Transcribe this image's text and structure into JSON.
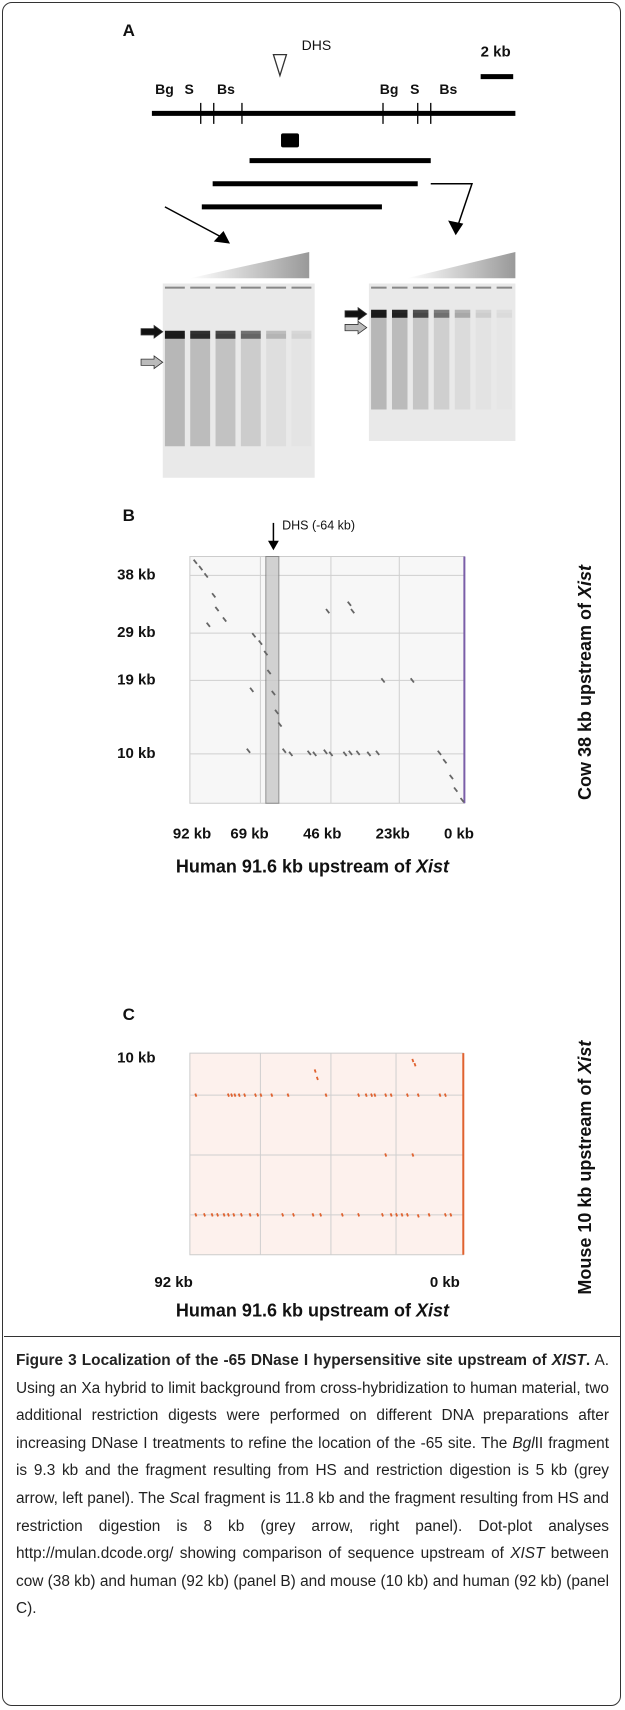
{
  "panel_a": {
    "label": "A",
    "dhs": "DHS",
    "scale": "2 kb",
    "sites": [
      "Bg",
      "S",
      "Bs",
      "Bg",
      "S",
      "Bs"
    ]
  },
  "panel_b": {
    "label": "B",
    "dhs": "DHS (-64 kb)",
    "y_labels": [
      "38 kb",
      "29 kb",
      "19 kb",
      "10 kb"
    ],
    "x_labels": [
      "92 kb",
      "69 kb",
      "46 kb",
      "23kb",
      "0 kb"
    ],
    "x_title": [
      "Human 91.6 kb upstream of ",
      "Xist"
    ],
    "y_title": [
      "Cow 38 kb upstream of ",
      "Xist"
    ]
  },
  "panel_c": {
    "label": "C",
    "y_labels": [
      "10 kb"
    ],
    "x_labels": [
      "92 kb",
      "0 kb"
    ],
    "x_title": [
      "Human 91.6 kb upstream of ",
      "Xist"
    ],
    "y_title": [
      "Mouse 10 kb upstream of ",
      "Xist"
    ]
  },
  "caption": {
    "label": "Figure 3",
    "title": [
      "Localization of the -65 DNase I hypersensitive site upstream of ",
      "XIST",
      "."
    ],
    "body": [
      "A. Using an Xa hybrid to limit background from cross-hybridization to human material, two additional restriction digests were performed on different DNA preparations after increasing DNase I treatments to refine the location of the -65 site. The ",
      "Bgl",
      "II fragment is 9.3 kb and the fragment resulting from HS and restriction digestion is 5 kb (grey arrow, left panel). The ",
      "Sca",
      "I fragment is 11.8 kb and the fragment resulting from HS and restriction digestion is 8 kb (grey arrow, right panel). Dot-plot analyses http://mulan.dcode.org/ showing comparison of sequence upstream of ",
      "XIST",
      " between cow (38 kb) and human (92 kb) (panel B) and mouse (10 kb) and human (92 kb) (panel C)."
    ]
  }
}
